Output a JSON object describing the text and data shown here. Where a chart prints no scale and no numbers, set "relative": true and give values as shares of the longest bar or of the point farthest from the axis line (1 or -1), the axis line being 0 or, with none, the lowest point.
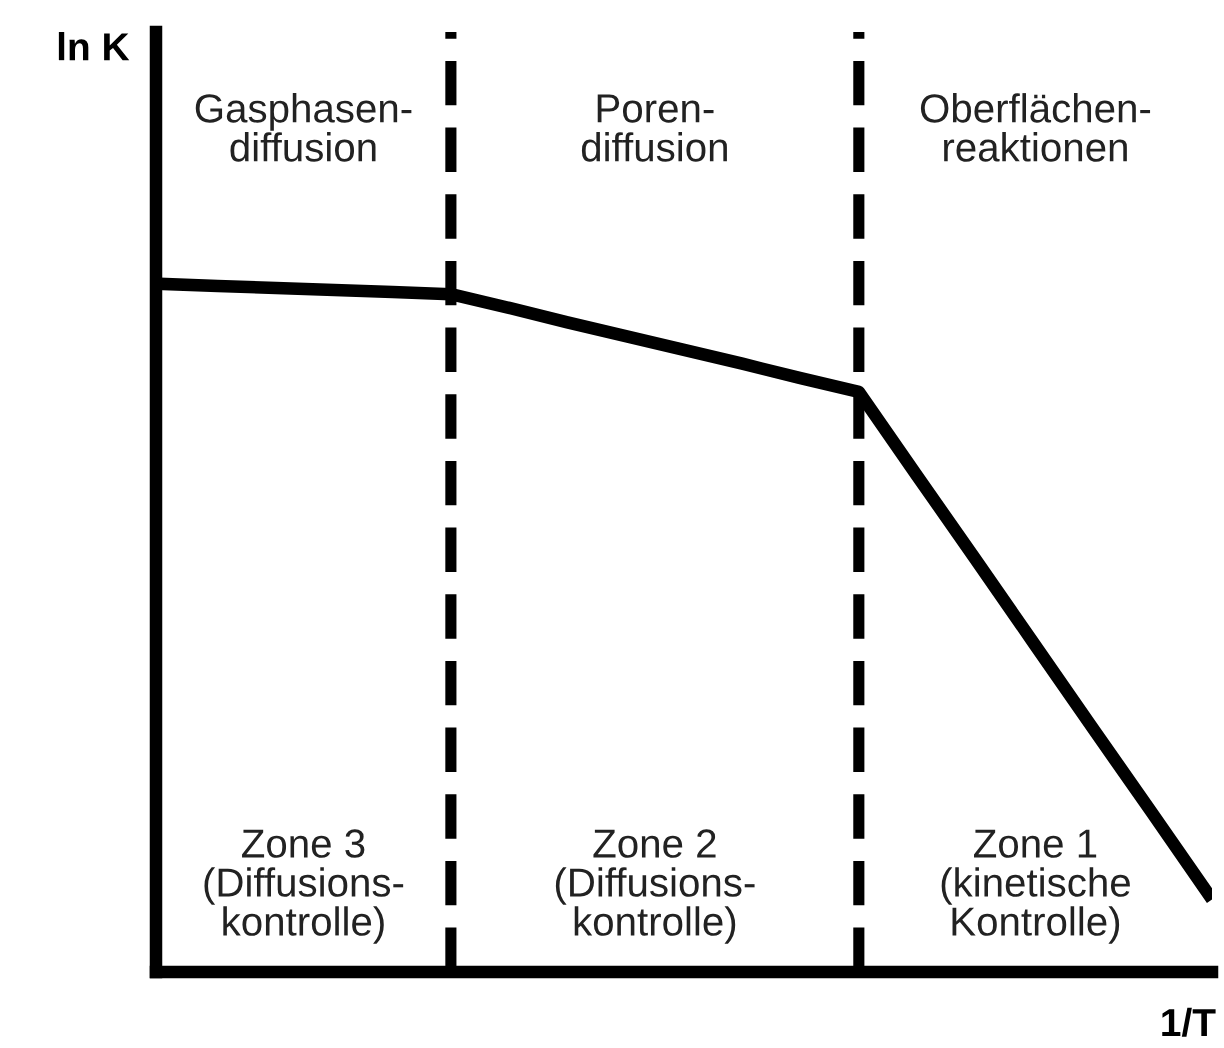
{
  "chart_data": {
    "type": "line",
    "relative": true,
    "categories": [
      null,
      null,
      null,
      null,
      null,
      null,
      null,
      null,
      null,
      null,
      null,
      null,
      null,
      null,
      null,
      null,
      null,
      null,
      null
    ],
    "series": [
      {
        "color": "#000000",
        "values": [
          1,
          0.997,
          0.994,
          0.991,
          0.988,
          0.985,
          0.965,
          0.944,
          0.924,
          0.904,
          0.884,
          0.863,
          0.843,
          0.721,
          0.6,
          0.478,
          0.356,
          0.235,
          0.113
        ]
      }
    ],
    "annotations": [
      "Gasphasen-\ndiffusion",
      "Poren-\ndiffusion",
      "Oberflächen-\nreaktionen",
      "Zone 3\n(Diffusions-\nkontrolle)",
      "Zone 2\n(Diffusions-\nkontrolle)",
      "Zone 1\n(kinetische\nKontrolle)",
      "ln K",
      "1/T"
    ],
    "marker": "none",
    "line_style": "solid"
  }
}
